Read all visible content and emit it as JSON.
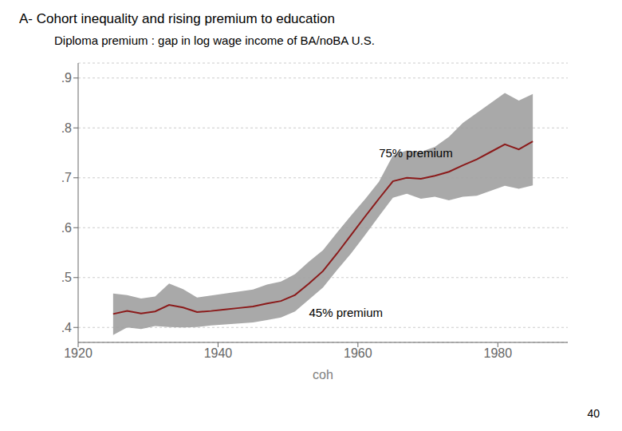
{
  "chart_data": {
    "type": "line",
    "title": "A- Cohort inequality and rising premium to education",
    "subtitle": "Diploma premium : gap in log wage income of BA/noBA U.S.",
    "x_label": "coh",
    "x": [
      1925,
      1927,
      1929,
      1931,
      1933,
      1935,
      1937,
      1939,
      1941,
      1943,
      1945,
      1947,
      1949,
      1951,
      1953,
      1955,
      1957,
      1959,
      1961,
      1963,
      1965,
      1967,
      1969,
      1971,
      1973,
      1975,
      1977,
      1979,
      1981,
      1983,
      1985
    ],
    "series": [
      {
        "type": "band",
        "color": "#a0a0a0",
        "lower": [
          0.385,
          0.4,
          0.397,
          0.403,
          0.401,
          0.4,
          0.401,
          0.404,
          0.406,
          0.408,
          0.41,
          0.415,
          0.42,
          0.432,
          0.456,
          0.48,
          0.515,
          0.548,
          0.585,
          0.623,
          0.66,
          0.668,
          0.658,
          0.662,
          0.655,
          0.662,
          0.664,
          0.674,
          0.684,
          0.678,
          0.685
        ],
        "upper": [
          0.468,
          0.465,
          0.458,
          0.462,
          0.488,
          0.477,
          0.46,
          0.464,
          0.468,
          0.472,
          0.476,
          0.486,
          0.492,
          0.507,
          0.532,
          0.555,
          0.59,
          0.624,
          0.657,
          0.692,
          0.745,
          0.755,
          0.752,
          0.762,
          0.782,
          0.81,
          0.83,
          0.85,
          0.87,
          0.855,
          0.868
        ]
      },
      {
        "type": "line",
        "color": "#8b1a1a",
        "values": [
          0.427,
          0.433,
          0.428,
          0.432,
          0.445,
          0.44,
          0.431,
          0.433,
          0.436,
          0.439,
          0.442,
          0.448,
          0.453,
          0.465,
          0.488,
          0.513,
          0.548,
          0.585,
          0.622,
          0.658,
          0.693,
          0.7,
          0.698,
          0.704,
          0.712,
          0.725,
          0.737,
          0.752,
          0.767,
          0.757,
          0.773
        ]
      }
    ],
    "xlim": [
      1920,
      1990
    ],
    "xticks": [
      1920,
      1940,
      1960,
      1980
    ],
    "ylim": [
      0.37,
      0.93
    ],
    "yticks": [
      {
        "value": 0.4,
        "label": ".4"
      },
      {
        "value": 0.5,
        "label": ".5"
      },
      {
        "value": 0.6,
        "label": ".6"
      },
      {
        "value": 0.7,
        "label": ".7"
      },
      {
        "value": 0.8,
        "label": ".8"
      },
      {
        "value": 0.9,
        "label": ".9"
      }
    ],
    "grid": "y",
    "annotations": [
      {
        "text": "75% premium",
        "x": 1963,
        "y": 0.735
      },
      {
        "text": "45% premium",
        "x": 1953,
        "y": 0.415
      }
    ],
    "page_number": "40"
  }
}
